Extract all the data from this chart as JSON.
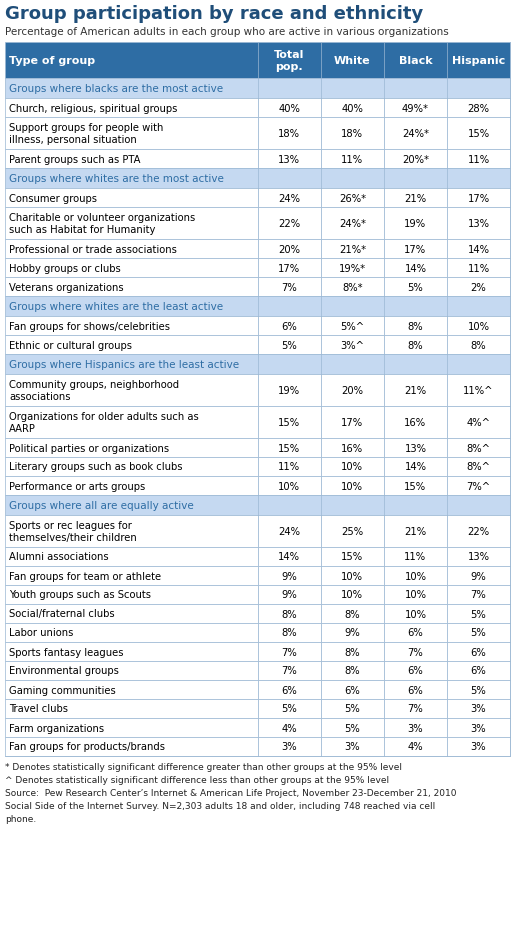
{
  "title": "Group participation by race and ethnicity",
  "subtitle": "Percentage of American adults in each group who are active in various organizations",
  "headers": [
    "Type of group",
    "Total\npop.",
    "White",
    "Black",
    "Hispanic"
  ],
  "section_headers": [
    {
      "text": "Groups where blacks are the most active",
      "row_index": 0
    },
    {
      "text": "Groups where whites are the most active",
      "row_index": 4
    },
    {
      "text": "Groups where whites are the least active",
      "row_index": 10
    },
    {
      "text": "Groups where Hispanics are the least active",
      "row_index": 13
    },
    {
      "text": "Groups where all are equally active",
      "row_index": 19
    }
  ],
  "rows": [
    [
      "Church, religious, spiritual groups",
      "40%",
      "40%",
      "49%*",
      "28%"
    ],
    [
      "Support groups for people with\nillness, personal situation",
      "18%",
      "18%",
      "24%*",
      "15%"
    ],
    [
      "Parent groups such as PTA",
      "13%",
      "11%",
      "20%*",
      "11%"
    ],
    null,
    [
      "Consumer groups",
      "24%",
      "26%*",
      "21%",
      "17%"
    ],
    [
      "Charitable or volunteer organizations\nsuch as Habitat for Humanity",
      "22%",
      "24%*",
      "19%",
      "13%"
    ],
    [
      "Professional or trade associations",
      "20%",
      "21%*",
      "17%",
      "14%"
    ],
    [
      "Hobby groups or clubs",
      "17%",
      "19%*",
      "14%",
      "11%"
    ],
    [
      "Veterans organizations",
      "7%",
      "8%*",
      "5%",
      "2%"
    ],
    null,
    [
      "Fan groups for shows/celebrities",
      "6%",
      "5%^",
      "8%",
      "10%"
    ],
    [
      "Ethnic or cultural groups",
      "5%",
      "3%^",
      "8%",
      "8%"
    ],
    null,
    [
      "Community groups, neighborhood\nassociations",
      "19%",
      "20%",
      "21%",
      "11%^"
    ],
    [
      "Organizations for older adults such as\nAARP",
      "15%",
      "17%",
      "16%",
      "4%^"
    ],
    [
      "Political parties or organizations",
      "15%",
      "16%",
      "13%",
      "8%^"
    ],
    [
      "Literary groups such as book clubs",
      "11%",
      "10%",
      "14%",
      "8%^"
    ],
    [
      "Performance or arts groups",
      "10%",
      "10%",
      "15%",
      "7%^"
    ],
    null,
    [
      "Sports or rec leagues for\nthemselves/their children",
      "24%",
      "25%",
      "21%",
      "22%"
    ],
    [
      "Alumni associations",
      "14%",
      "15%",
      "11%",
      "13%"
    ],
    [
      "Fan groups for team or athlete",
      "9%",
      "10%",
      "10%",
      "9%"
    ],
    [
      "Youth groups such as Scouts",
      "9%",
      "10%",
      "10%",
      "7%"
    ],
    [
      "Social/fraternal clubs",
      "8%",
      "8%",
      "10%",
      "5%"
    ],
    [
      "Labor unions",
      "8%",
      "9%",
      "6%",
      "5%"
    ],
    [
      "Sports fantasy leagues",
      "7%",
      "8%",
      "7%",
      "6%"
    ],
    [
      "Environmental groups",
      "7%",
      "8%",
      "6%",
      "6%"
    ],
    [
      "Gaming communities",
      "6%",
      "6%",
      "6%",
      "5%"
    ],
    [
      "Travel clubs",
      "5%",
      "5%",
      "7%",
      "3%"
    ],
    [
      "Farm organizations",
      "4%",
      "5%",
      "3%",
      "3%"
    ],
    [
      "Fan groups for products/brands",
      "3%",
      "3%",
      "4%",
      "3%"
    ]
  ],
  "footer_lines": [
    "* Denotes statistically significant difference greater than other groups at the 95% level",
    "^ Denotes statistically significant difference less than other groups at the 95% level",
    "Source:  Pew Research Center’s Internet & American Life Project, November 23-December 21, 2010",
    "Social Side of the Internet Survey. N=2,303 adults 18 and older, including 748 reached via cell",
    "phone."
  ],
  "header_bg": "#2e6da4",
  "section_bg": "#c5d9f1",
  "row_bg": "#ffffff",
  "border_color": "#9ab7d3",
  "header_text_color": "#ffffff",
  "section_text_color": "#2e6da4",
  "row_text_color": "#000000",
  "title_color": "#1f4e79",
  "col_props": [
    0.445,
    0.111,
    0.111,
    0.111,
    0.111
  ]
}
